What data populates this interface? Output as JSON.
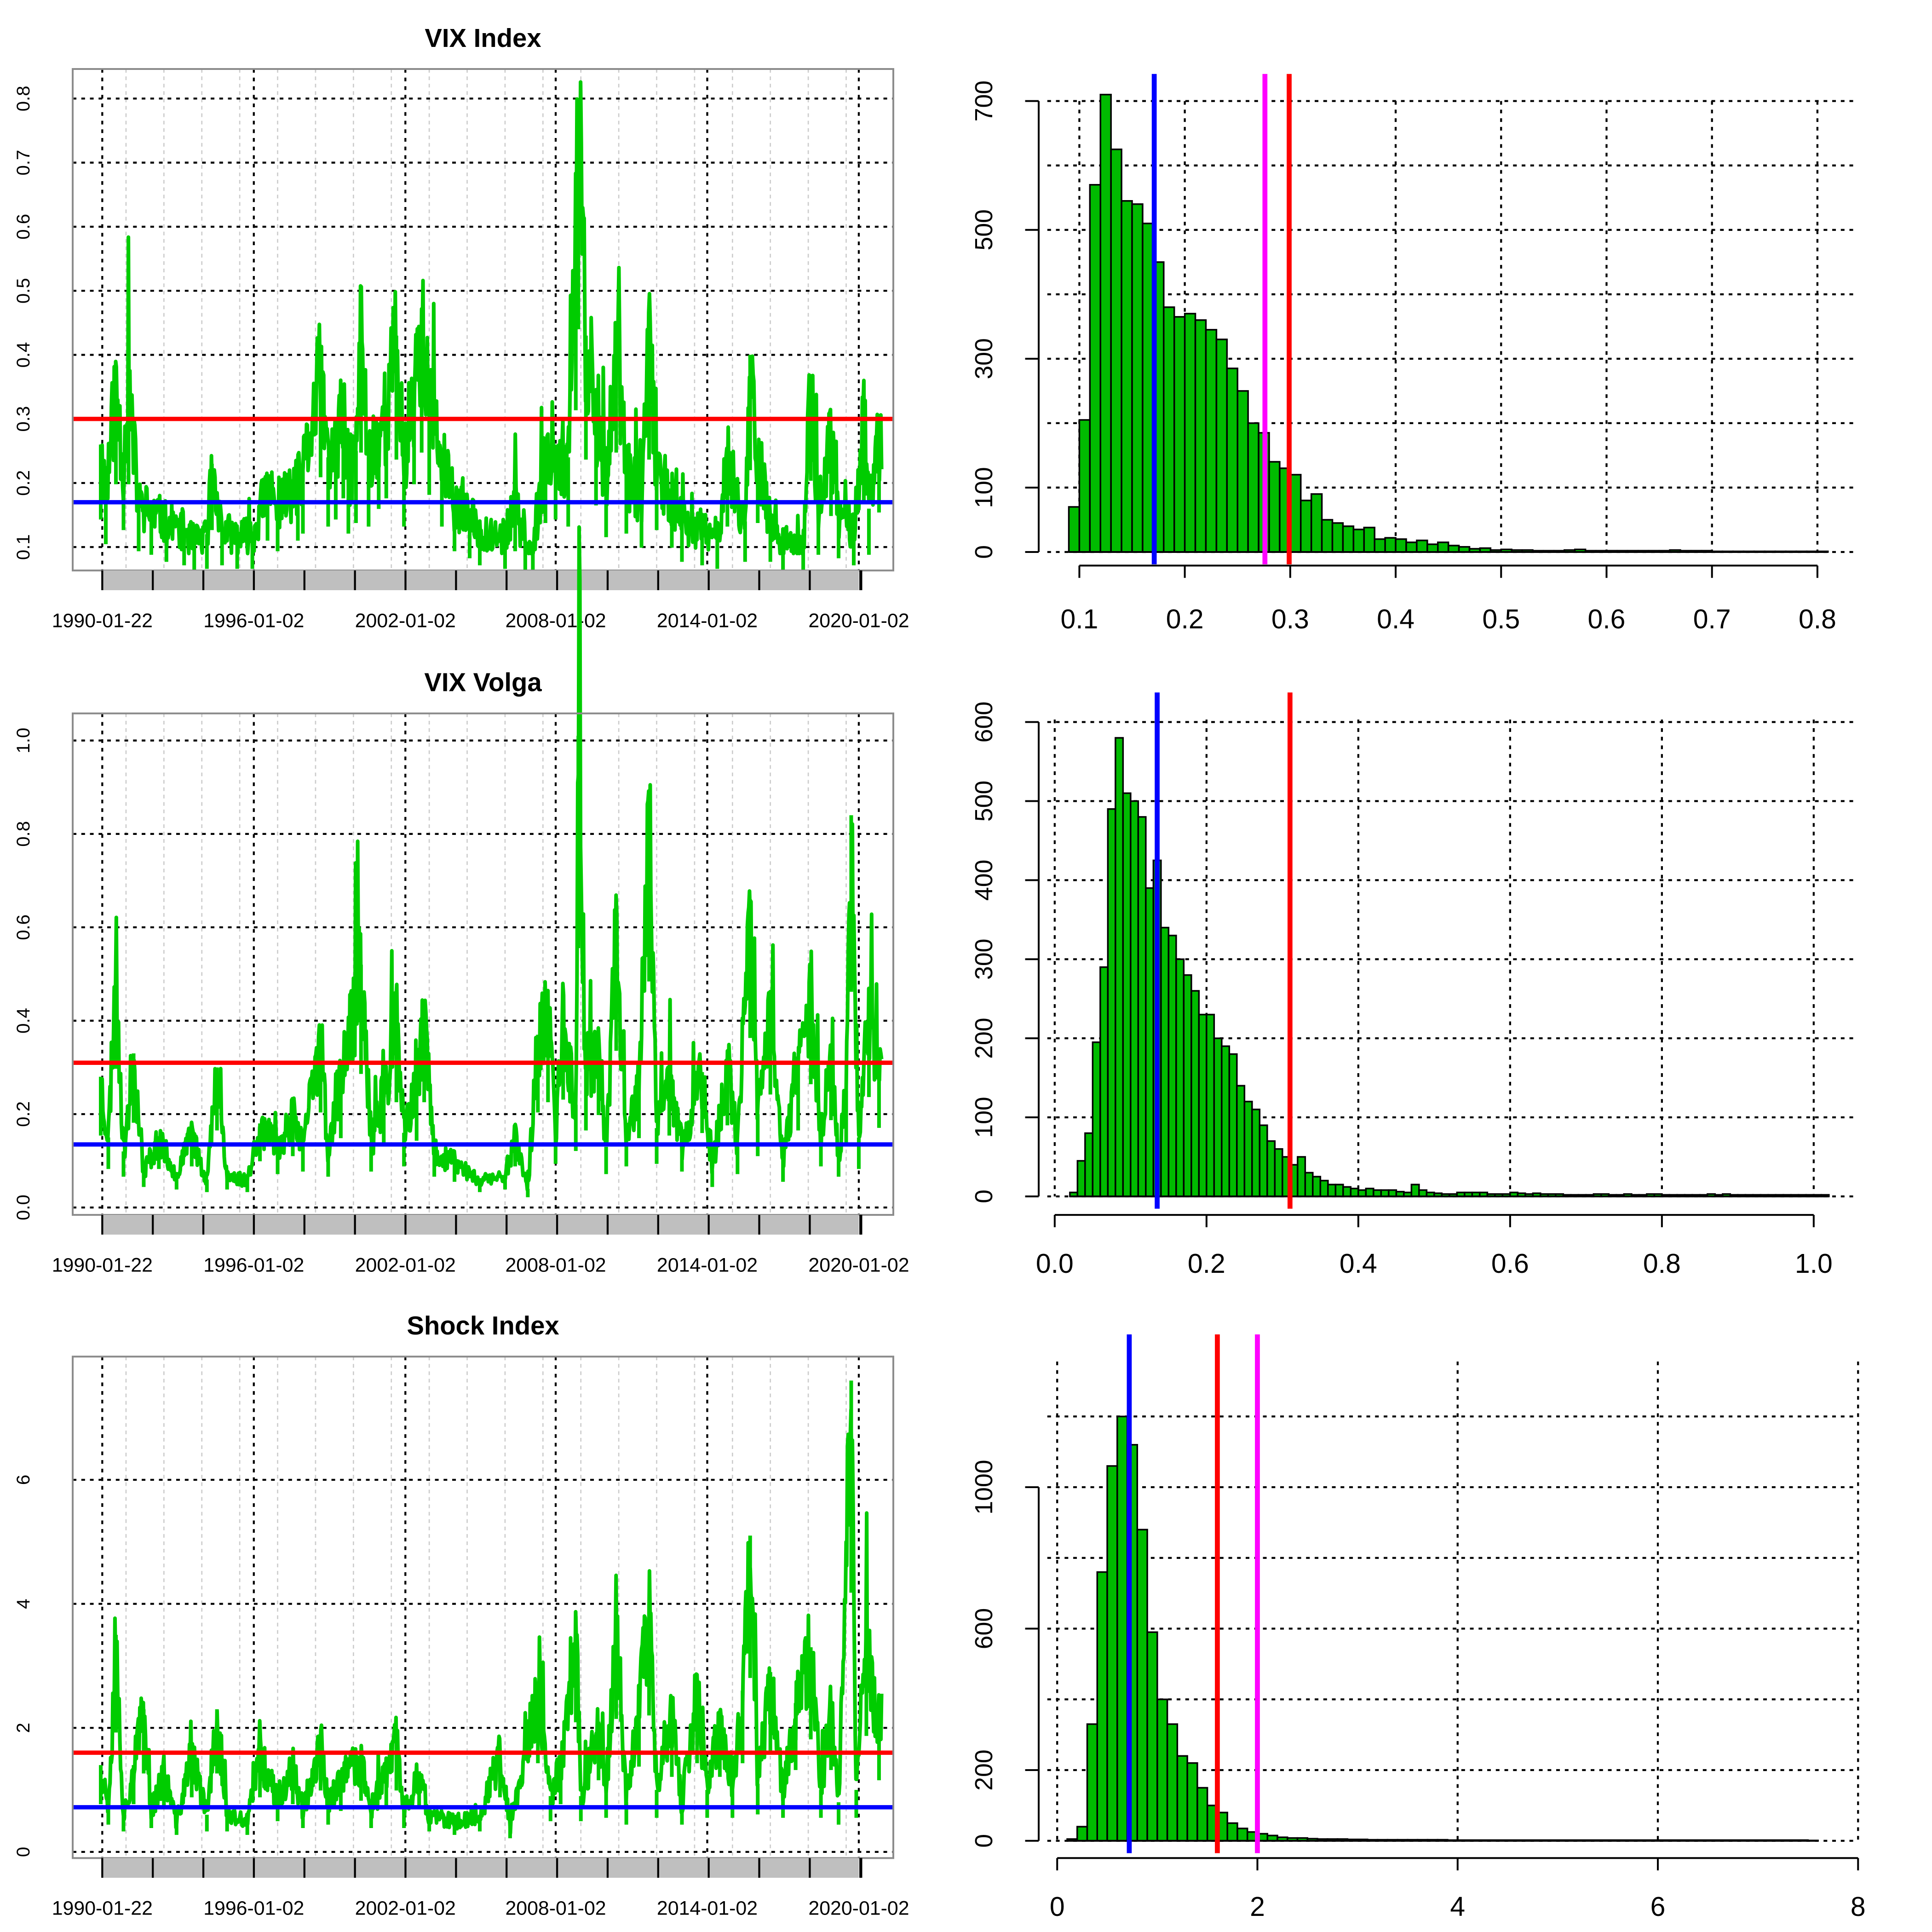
{
  "colors": {
    "series": "#00cc00",
    "hist_fill": "#00bb00",
    "red": "#ff0000",
    "blue": "#0000ff",
    "magenta": "#ff00ff",
    "grid": "#000000",
    "shade": "#bfbfbf"
  },
  "chart_data": [
    {
      "type": "line",
      "title": "VIX Index",
      "x_ticks": [
        "1990-01-22",
        "1996-01-02",
        "2002-01-02",
        "2008-01-02",
        "2014-01-02",
        "2020-01-02"
      ],
      "y_ticks": [
        "0.1",
        "0.2",
        "0.3",
        "0.4",
        "0.5",
        "0.6",
        "0.7",
        "0.8"
      ],
      "ylim": [
        0.06,
        0.84
      ],
      "grid": true,
      "hlines": [
        {
          "color": "red",
          "value": 0.3
        },
        {
          "color": "blue",
          "value": 0.17
        }
      ],
      "keypoints": [
        [
          1990.0,
          0.26
        ],
        [
          1990.2,
          0.19
        ],
        [
          1990.6,
          0.36
        ],
        [
          1990.9,
          0.23
        ],
        [
          1991.1,
          0.36
        ],
        [
          1991.5,
          0.17
        ],
        [
          1992.0,
          0.16
        ],
        [
          1992.6,
          0.14
        ],
        [
          1993.3,
          0.13
        ],
        [
          1993.7,
          0.11
        ],
        [
          1994.2,
          0.12
        ],
        [
          1994.4,
          0.23
        ],
        [
          1994.8,
          0.13
        ],
        [
          1995.4,
          0.12
        ],
        [
          1996.0,
          0.12
        ],
        [
          1996.6,
          0.2
        ],
        [
          1997.0,
          0.17
        ],
        [
          1997.8,
          0.2
        ],
        [
          1998.0,
          0.22
        ],
        [
          1998.7,
          0.38
        ],
        [
          1999.0,
          0.24
        ],
        [
          1999.3,
          0.26
        ],
        [
          1999.6,
          0.32
        ],
        [
          1999.8,
          0.22
        ],
        [
          2000.1,
          0.25
        ],
        [
          2000.3,
          0.45
        ],
        [
          2000.6,
          0.24
        ],
        [
          2001.0,
          0.29
        ],
        [
          2001.3,
          0.32
        ],
        [
          2001.7,
          0.43
        ],
        [
          2002.0,
          0.24
        ],
        [
          2002.4,
          0.36
        ],
        [
          2002.7,
          0.45
        ],
        [
          2003.0,
          0.33
        ],
        [
          2003.5,
          0.24
        ],
        [
          2004.0,
          0.17
        ],
        [
          2004.6,
          0.15
        ],
        [
          2005.0,
          0.13
        ],
        [
          2006.0,
          0.12
        ],
        [
          2006.4,
          0.17
        ],
        [
          2006.8,
          0.11
        ],
        [
          2007.1,
          0.1
        ],
        [
          2007.6,
          0.25
        ],
        [
          2008.0,
          0.26
        ],
        [
          2008.5,
          0.24
        ],
        [
          2008.8,
          0.57
        ],
        [
          2008.9,
          0.8
        ],
        [
          2009.2,
          0.43
        ],
        [
          2009.6,
          0.3
        ],
        [
          2010.0,
          0.21
        ],
        [
          2010.4,
          0.45
        ],
        [
          2010.8,
          0.22
        ],
        [
          2011.4,
          0.18
        ],
        [
          2011.7,
          0.43
        ],
        [
          2012.0,
          0.23
        ],
        [
          2012.6,
          0.18
        ],
        [
          2013.0,
          0.14
        ],
        [
          2013.8,
          0.13
        ],
        [
          2014.4,
          0.12
        ],
        [
          2014.8,
          0.24
        ],
        [
          2015.5,
          0.14
        ],
        [
          2015.7,
          0.4
        ],
        [
          2016.0,
          0.25
        ],
        [
          2016.5,
          0.14
        ],
        [
          2017.0,
          0.11
        ],
        [
          2017.8,
          0.1
        ],
        [
          2018.1,
          0.37
        ],
        [
          2018.4,
          0.16
        ],
        [
          2018.9,
          0.27
        ],
        [
          2019.2,
          0.15
        ],
        [
          2019.8,
          0.13
        ],
        [
          2020.2,
          0.31
        ],
        [
          2020.4,
          0.16
        ],
        [
          2020.8,
          0.28
        ]
      ]
    },
    {
      "type": "histogram",
      "x_ticks": [
        "0.1",
        "0.2",
        "0.3",
        "0.4",
        "0.5",
        "0.6",
        "0.7",
        "0.8"
      ],
      "y_ticks": [
        "0",
        "100",
        "300",
        "500",
        "700"
      ],
      "xlim": [
        0.07,
        0.82
      ],
      "ylim": [
        0,
        720
      ],
      "bin_start": 0.09,
      "bin_width": 0.01,
      "counts": [
        70,
        205,
        570,
        710,
        625,
        545,
        540,
        510,
        450,
        380,
        365,
        370,
        360,
        345,
        330,
        285,
        250,
        200,
        185,
        140,
        130,
        120,
        80,
        90,
        50,
        45,
        40,
        35,
        38,
        20,
        22,
        20,
        15,
        18,
        12,
        15,
        10,
        8,
        5,
        6,
        3,
        4,
        3,
        3,
        2,
        2,
        2,
        3,
        4,
        2,
        2,
        2,
        2,
        2,
        2,
        2,
        2,
        3,
        2,
        2,
        2,
        1,
        1,
        1,
        1,
        1,
        1,
        1,
        1,
        1,
        1,
        1
      ],
      "vlines": [
        {
          "color": "blue",
          "value": 0.171
        },
        {
          "color": "magenta",
          "value": 0.276
        },
        {
          "color": "red",
          "value": 0.299
        }
      ]
    },
    {
      "type": "line",
      "title": "VIX Volga",
      "x_ticks": [
        "1990-01-22",
        "1996-01-02",
        "2002-01-02",
        "2008-01-02",
        "2014-01-02",
        "2020-01-02"
      ],
      "y_ticks": [
        "0.0",
        "0.2",
        "0.4",
        "0.6",
        "0.8",
        "1.0"
      ],
      "ylim": [
        -0.03,
        1.05
      ],
      "grid": true,
      "hlines": [
        {
          "color": "red",
          "value": 0.31
        },
        {
          "color": "blue",
          "value": 0.135
        }
      ],
      "keypoints": [
        [
          1990.0,
          0.28
        ],
        [
          1990.3,
          0.15
        ],
        [
          1990.6,
          0.54
        ],
        [
          1990.9,
          0.12
        ],
        [
          1991.3,
          0.33
        ],
        [
          1991.7,
          0.08
        ],
        [
          1992.3,
          0.15
        ],
        [
          1993.0,
          0.07
        ],
        [
          1993.6,
          0.16
        ],
        [
          1994.2,
          0.06
        ],
        [
          1994.6,
          0.3
        ],
        [
          1995.0,
          0.07
        ],
        [
          1995.8,
          0.06
        ],
        [
          1996.3,
          0.18
        ],
        [
          1997.0,
          0.13
        ],
        [
          1997.6,
          0.2
        ],
        [
          1998.0,
          0.14
        ],
        [
          1998.7,
          0.37
        ],
        [
          1999.0,
          0.12
        ],
        [
          1999.5,
          0.27
        ],
        [
          2000.3,
          0.52
        ],
        [
          2000.7,
          0.14
        ],
        [
          2001.2,
          0.25
        ],
        [
          2001.7,
          0.41
        ],
        [
          2002.0,
          0.16
        ],
        [
          2002.5,
          0.26
        ],
        [
          2002.8,
          0.41
        ],
        [
          2003.2,
          0.12
        ],
        [
          2004.0,
          0.1
        ],
        [
          2005.0,
          0.06
        ],
        [
          2006.0,
          0.07
        ],
        [
          2006.4,
          0.16
        ],
        [
          2006.9,
          0.04
        ],
        [
          2007.3,
          0.37
        ],
        [
          2007.7,
          0.41
        ],
        [
          2008.0,
          0.17
        ],
        [
          2008.3,
          0.42
        ],
        [
          2008.8,
          0.22
        ],
        [
          2008.9,
          1.01
        ],
        [
          2009.2,
          0.3
        ],
        [
          2009.7,
          0.36
        ],
        [
          2010.0,
          0.13
        ],
        [
          2010.4,
          0.61
        ],
        [
          2010.8,
          0.16
        ],
        [
          2011.3,
          0.27
        ],
        [
          2011.7,
          0.88
        ],
        [
          2012.0,
          0.17
        ],
        [
          2012.5,
          0.28
        ],
        [
          2013.0,
          0.14
        ],
        [
          2013.8,
          0.29
        ],
        [
          2014.2,
          0.08
        ],
        [
          2014.8,
          0.32
        ],
        [
          2015.2,
          0.13
        ],
        [
          2015.7,
          0.66
        ],
        [
          2016.0,
          0.2
        ],
        [
          2016.5,
          0.44
        ],
        [
          2017.0,
          0.1
        ],
        [
          2017.6,
          0.3
        ],
        [
          2018.1,
          0.48
        ],
        [
          2018.5,
          0.16
        ],
        [
          2018.9,
          0.34
        ],
        [
          2019.2,
          0.12
        ],
        [
          2019.5,
          0.25
        ],
        [
          2019.7,
          0.84
        ],
        [
          2020.0,
          0.15
        ],
        [
          2020.4,
          0.43
        ],
        [
          2020.8,
          0.31
        ]
      ]
    },
    {
      "type": "histogram",
      "x_ticks": [
        "0.0",
        "0.2",
        "0.4",
        "0.6",
        "0.8",
        "1.0"
      ],
      "y_ticks": [
        "0",
        "100",
        "200",
        "300",
        "400",
        "500",
        "600"
      ],
      "xlim": [
        -0.01,
        1.05
      ],
      "ylim": [
        0,
        600
      ],
      "bin_start": 0.02,
      "bin_width": 0.01,
      "counts": [
        5,
        45,
        80,
        195,
        290,
        490,
        580,
        510,
        500,
        480,
        390,
        425,
        340,
        330,
        300,
        280,
        260,
        230,
        230,
        200,
        190,
        180,
        140,
        120,
        110,
        90,
        70,
        60,
        50,
        40,
        50,
        30,
        25,
        20,
        15,
        15,
        12,
        10,
        8,
        10,
        8,
        8,
        8,
        6,
        5,
        15,
        8,
        5,
        4,
        3,
        3,
        5,
        5,
        5,
        5,
        3,
        3,
        3,
        5,
        4,
        3,
        4,
        3,
        3,
        3,
        2,
        2,
        2,
        2,
        3,
        3,
        2,
        2,
        3,
        2,
        2,
        3,
        3,
        2,
        2,
        2,
        2,
        2,
        2,
        3,
        2,
        3,
        2,
        2,
        2,
        2,
        2,
        2,
        2,
        2,
        2,
        2,
        2,
        2,
        2
      ],
      "vlines": [
        {
          "color": "blue",
          "value": 0.135
        },
        {
          "color": "red",
          "value": 0.31
        }
      ]
    },
    {
      "type": "line",
      "title": "Shock Index",
      "x_ticks": [
        "1990-01-22",
        "1996-01-02",
        "2002-01-02",
        "2008-01-02",
        "2014-01-02",
        "2020-01-02"
      ],
      "y_ticks": [
        "0",
        "2",
        "4",
        "6"
      ],
      "ylim": [
        -0.1,
        7.8
      ],
      "grid": true,
      "hlines": [
        {
          "color": "red",
          "value": 1.6
        },
        {
          "color": "blue",
          "value": 0.72
        }
      ],
      "keypoints": [
        [
          1990.0,
          1.4
        ],
        [
          1990.3,
          0.8
        ],
        [
          1990.6,
          3.5
        ],
        [
          1990.9,
          0.6
        ],
        [
          1991.3,
          1.4
        ],
        [
          1991.7,
          2.3
        ],
        [
          1992.0,
          0.7
        ],
        [
          1992.5,
          1.3
        ],
        [
          1993.0,
          0.5
        ],
        [
          1993.6,
          1.6
        ],
        [
          1994.2,
          0.6
        ],
        [
          1994.6,
          2.3
        ],
        [
          1995.0,
          0.6
        ],
        [
          1995.8,
          0.5
        ],
        [
          1996.3,
          1.6
        ],
        [
          1997.0,
          0.9
        ],
        [
          1997.6,
          1.4
        ],
        [
          1998.0,
          0.7
        ],
        [
          1998.7,
          1.8
        ],
        [
          1999.0,
          0.8
        ],
        [
          1999.5,
          1.2
        ],
        [
          2000.3,
          1.5
        ],
        [
          2000.7,
          0.7
        ],
        [
          2001.3,
          1.3
        ],
        [
          2001.7,
          1.8
        ],
        [
          2002.0,
          0.7
        ],
        [
          2002.6,
          1.3
        ],
        [
          2003.0,
          0.6
        ],
        [
          2004.0,
          0.5
        ],
        [
          2005.0,
          0.6
        ],
        [
          2005.8,
          1.6
        ],
        [
          2006.2,
          0.4
        ],
        [
          2007.3,
          2.6
        ],
        [
          2007.8,
          0.9
        ],
        [
          2008.2,
          1.4
        ],
        [
          2008.8,
          3.8
        ],
        [
          2009.0,
          0.9
        ],
        [
          2009.7,
          2.1
        ],
        [
          2010.0,
          1.0
        ],
        [
          2010.4,
          3.9
        ],
        [
          2010.8,
          0.8
        ],
        [
          2011.3,
          2.5
        ],
        [
          2011.7,
          4.0
        ],
        [
          2012.0,
          1.0
        ],
        [
          2012.6,
          2.2
        ],
        [
          2013.0,
          0.8
        ],
        [
          2013.6,
          2.6
        ],
        [
          2014.0,
          1.0
        ],
        [
          2014.5,
          2.2
        ],
        [
          2015.0,
          1.0
        ],
        [
          2015.4,
          2.6
        ],
        [
          2015.7,
          5.1
        ],
        [
          2016.0,
          1.1
        ],
        [
          2016.5,
          2.9
        ],
        [
          2017.0,
          1.0
        ],
        [
          2017.5,
          2.4
        ],
        [
          2018.1,
          3.3
        ],
        [
          2018.5,
          1.0
        ],
        [
          2018.9,
          2.4
        ],
        [
          2019.2,
          0.8
        ],
        [
          2019.7,
          7.6
        ],
        [
          2019.9,
          1.0
        ],
        [
          2020.3,
          3.4
        ],
        [
          2020.8,
          2.1
        ]
      ]
    },
    {
      "type": "histogram",
      "x_ticks": [
        "0",
        "2",
        "4",
        "6",
        "8"
      ],
      "y_ticks": [
        "0",
        "200",
        "600",
        "1000"
      ],
      "xlim": [
        -0.1,
        8.0
      ],
      "ylim": [
        0,
        1250
      ],
      "bin_start": 0.1,
      "bin_width": 0.1,
      "counts": [
        5,
        40,
        330,
        760,
        1060,
        1200,
        1120,
        880,
        590,
        400,
        330,
        240,
        220,
        150,
        100,
        80,
        50,
        35,
        25,
        20,
        15,
        10,
        8,
        8,
        6,
        5,
        5,
        5,
        4,
        4,
        3,
        3,
        3,
        3,
        3,
        3,
        3,
        3,
        2,
        2,
        2,
        2,
        2,
        2,
        2,
        2,
        2,
        2,
        2,
        2,
        2,
        2,
        2,
        2,
        2,
        2,
        2,
        2,
        2,
        2,
        2,
        2,
        2,
        2,
        2,
        2,
        2,
        2,
        2,
        2,
        2,
        2,
        2,
        2,
        1
      ],
      "vlines": [
        {
          "color": "blue",
          "value": 0.72
        },
        {
          "color": "red",
          "value": 1.6
        },
        {
          "color": "magenta",
          "value": 2.0
        }
      ]
    }
  ]
}
